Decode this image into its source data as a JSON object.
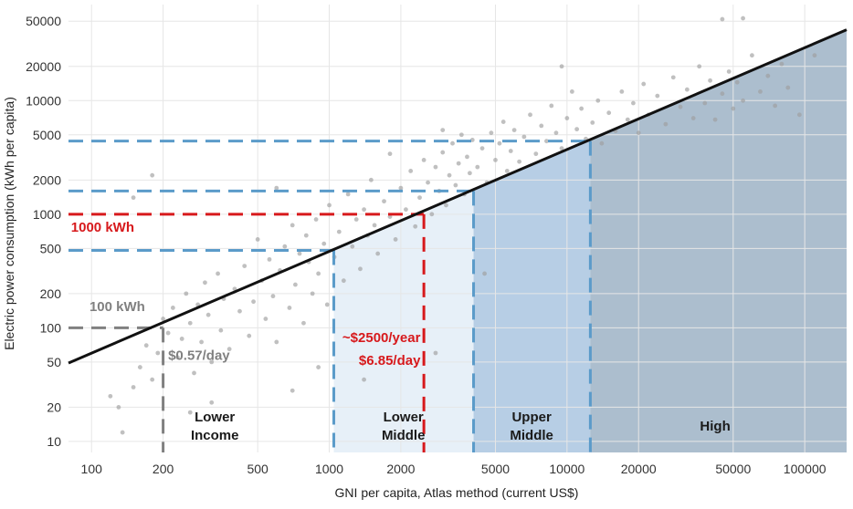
{
  "chart_data": {
    "type": "scatter",
    "xlabel": "GNI per capita, Atlas method (current US$)",
    "ylabel": "Electric power consumption (kWh per capita)",
    "x_scale": "log",
    "y_scale": "log",
    "xlim": [
      80,
      150000
    ],
    "ylim": [
      8,
      70000
    ],
    "x_ticks": [
      100,
      200,
      500,
      1000,
      2000,
      5000,
      10000,
      20000,
      50000,
      100000
    ],
    "y_ticks": [
      10,
      20,
      50,
      100,
      200,
      500,
      1000,
      2000,
      5000,
      10000,
      20000,
      50000
    ],
    "x_tick_labels": [
      "100",
      "200",
      "500",
      "1000",
      "2000",
      "5000",
      "10000",
      "20000",
      "50000",
      "100000"
    ],
    "y_tick_labels": [
      "10",
      "20",
      "50",
      "100",
      "200",
      "500",
      "1000",
      "2000",
      "5000",
      "10000",
      "20000",
      "50000"
    ],
    "grid": true,
    "trend_line": {
      "x": [
        80,
        150000
      ],
      "y": [
        49,
        42000
      ],
      "color": "#111111"
    },
    "income_zones": [
      {
        "label_lines": [
          "Lower",
          "Income"
        ],
        "x_from": 80,
        "x_to": 1045,
        "fill": "#ffffff",
        "label_x": 330,
        "label_y": 14.5
      },
      {
        "label_lines": [
          "Lower",
          "Middle"
        ],
        "x_from": 1045,
        "x_to": 4045,
        "fill": "#e3edf7",
        "label_x": 2050,
        "label_y": 14.5
      },
      {
        "label_lines": [
          "Upper",
          "Middle"
        ],
        "x_from": 4045,
        "x_to": 12535,
        "fill": "#aac6e0",
        "label_x": 7100,
        "label_y": 14.5
      },
      {
        "label_lines": [
          "High"
        ],
        "x_from": 12535,
        "x_to": 150000,
        "fill": "#9db3c6",
        "label_x": 42000,
        "label_y": 14.5
      }
    ],
    "thresholds": [
      {
        "x": 200,
        "y": 100,
        "color": "#808080"
      },
      {
        "x": 1045,
        "y": 480,
        "color": "#5b9bc9"
      },
      {
        "x": 2500,
        "y": 1000,
        "color": "#d7191c"
      },
      {
        "x": 4045,
        "y": 1600,
        "color": "#5b9bc9"
      },
      {
        "x": 12535,
        "y": 4400,
        "color": "#5b9bc9"
      }
    ],
    "annotations": [
      {
        "text": "100 kWh",
        "x": 98,
        "y": 140,
        "color": "#808080",
        "anchor": "start"
      },
      {
        "text": "1000 kWh",
        "x": 82,
        "y": 700,
        "color": "#d7191c",
        "anchor": "start"
      },
      {
        "text": "$0.57/day",
        "x": 210,
        "y": 52,
        "color": "#808080",
        "anchor": "start"
      },
      {
        "text": "~$2500/year",
        "x": 2420,
        "y": 75,
        "color": "#d7191c",
        "anchor": "end"
      },
      {
        "text": "$6.85/day",
        "x": 2420,
        "y": 47,
        "color": "#d7191c",
        "anchor": "end"
      }
    ],
    "points": [
      [
        120,
        25
      ],
      [
        135,
        12
      ],
      [
        150,
        30
      ],
      [
        160,
        45
      ],
      [
        170,
        70
      ],
      [
        180,
        35
      ],
      [
        190,
        60
      ],
      [
        200,
        120
      ],
      [
        210,
        90
      ],
      [
        220,
        150
      ],
      [
        230,
        55
      ],
      [
        240,
        80
      ],
      [
        250,
        200
      ],
      [
        260,
        110
      ],
      [
        270,
        40
      ],
      [
        280,
        160
      ],
      [
        290,
        75
      ],
      [
        300,
        250
      ],
      [
        310,
        130
      ],
      [
        320,
        50
      ],
      [
        340,
        300
      ],
      [
        350,
        95
      ],
      [
        360,
        180
      ],
      [
        380,
        65
      ],
      [
        400,
        220
      ],
      [
        420,
        140
      ],
      [
        440,
        350
      ],
      [
        460,
        85
      ],
      [
        480,
        170
      ],
      [
        500,
        600
      ],
      [
        520,
        260
      ],
      [
        540,
        120
      ],
      [
        560,
        400
      ],
      [
        580,
        190
      ],
      [
        600,
        75
      ],
      [
        620,
        320
      ],
      [
        650,
        520
      ],
      [
        680,
        150
      ],
      [
        700,
        800
      ],
      [
        720,
        240
      ],
      [
        750,
        450
      ],
      [
        780,
        110
      ],
      [
        800,
        650
      ],
      [
        820,
        380
      ],
      [
        850,
        200
      ],
      [
        880,
        900
      ],
      [
        900,
        300
      ],
      [
        950,
        550
      ],
      [
        980,
        160
      ],
      [
        1000,
        1200
      ],
      [
        1050,
        420
      ],
      [
        1100,
        700
      ],
      [
        1150,
        260
      ],
      [
        1200,
        1500
      ],
      [
        1250,
        520
      ],
      [
        1300,
        900
      ],
      [
        1350,
        330
      ],
      [
        1400,
        1100
      ],
      [
        1450,
        650
      ],
      [
        1500,
        2000
      ],
      [
        1550,
        800
      ],
      [
        1600,
        450
      ],
      [
        1700,
        1300
      ],
      [
        1800,
        950
      ],
      [
        1900,
        600
      ],
      [
        2000,
        1700
      ],
      [
        2100,
        1100
      ],
      [
        2200,
        2400
      ],
      [
        2300,
        780
      ],
      [
        2400,
        1400
      ],
      [
        2500,
        3000
      ],
      [
        2600,
        1900
      ],
      [
        2700,
        1000
      ],
      [
        2800,
        2600
      ],
      [
        2900,
        1600
      ],
      [
        3000,
        3500
      ],
      [
        3100,
        1200
      ],
      [
        3200,
        2200
      ],
      [
        3300,
        4200
      ],
      [
        3400,
        1800
      ],
      [
        3500,
        2800
      ],
      [
        3600,
        5000
      ],
      [
        3700,
        1500
      ],
      [
        3800,
        3200
      ],
      [
        3900,
        2300
      ],
      [
        4000,
        4500
      ],
      [
        4200,
        2600
      ],
      [
        4400,
        3800
      ],
      [
        4600,
        1900
      ],
      [
        4800,
        5200
      ],
      [
        5000,
        3000
      ],
      [
        5200,
        4200
      ],
      [
        5400,
        6500
      ],
      [
        5600,
        2400
      ],
      [
        5800,
        3600
      ],
      [
        6000,
        5500
      ],
      [
        6300,
        2900
      ],
      [
        6600,
        4800
      ],
      [
        7000,
        7500
      ],
      [
        7400,
        3400
      ],
      [
        7800,
        6000
      ],
      [
        8200,
        4400
      ],
      [
        8600,
        9000
      ],
      [
        9000,
        5200
      ],
      [
        9500,
        3800
      ],
      [
        10000,
        7000
      ],
      [
        10500,
        12000
      ],
      [
        11000,
        5600
      ],
      [
        11500,
        8500
      ],
      [
        12000,
        4600
      ],
      [
        12800,
        6400
      ],
      [
        13500,
        10000
      ],
      [
        14000,
        4200
      ],
      [
        15000,
        7800
      ],
      [
        16000,
        5400
      ],
      [
        17000,
        12000
      ],
      [
        18000,
        6800
      ],
      [
        19000,
        9500
      ],
      [
        20000,
        5200
      ],
      [
        21000,
        14000
      ],
      [
        22000,
        7500
      ],
      [
        24000,
        11000
      ],
      [
        26000,
        6200
      ],
      [
        28000,
        16000
      ],
      [
        30000,
        8800
      ],
      [
        32000,
        12500
      ],
      [
        34000,
        7000
      ],
      [
        36000,
        20000
      ],
      [
        38000,
        9500
      ],
      [
        40000,
        15000
      ],
      [
        42000,
        6800
      ],
      [
        45000,
        11500
      ],
      [
        48000,
        18000
      ],
      [
        50000,
        8500
      ],
      [
        52000,
        14500
      ],
      [
        55000,
        10000
      ],
      [
        60000,
        25000
      ],
      [
        65000,
        12000
      ],
      [
        70000,
        16500
      ],
      [
        75000,
        9000
      ],
      [
        80000,
        21000
      ],
      [
        85000,
        13000
      ],
      [
        95000,
        7500
      ],
      [
        110000,
        25000
      ],
      [
        45000,
        52000
      ],
      [
        55000,
        53000
      ],
      [
        9500,
        20000
      ],
      [
        3000,
        5500
      ],
      [
        1800,
        3400
      ],
      [
        600,
        1700
      ],
      [
        180,
        2200
      ],
      [
        150,
        1400
      ],
      [
        130,
        20
      ],
      [
        260,
        18
      ],
      [
        320,
        22
      ],
      [
        900,
        45
      ],
      [
        1400,
        35
      ],
      [
        2800,
        60
      ],
      [
        4500,
        300
      ],
      [
        700,
        28
      ]
    ],
    "point_color": "#9e9e9e"
  }
}
